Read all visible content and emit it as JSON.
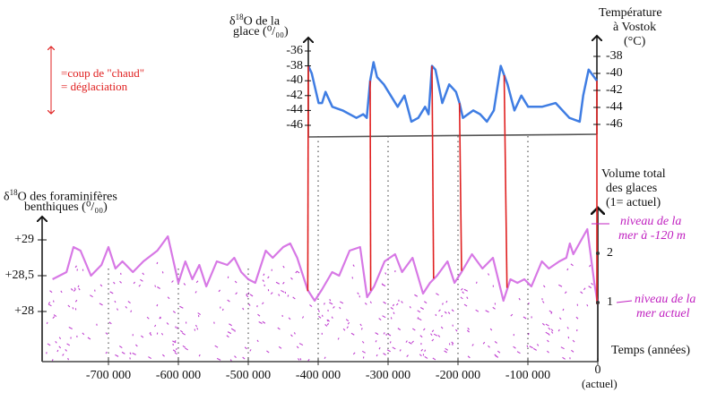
{
  "legend": {
    "line1": "=coup de \"chaud\"",
    "line2": "= déglaciation",
    "color": "#e02020"
  },
  "top_left_axis": {
    "line1_prefix": "δ",
    "line1_sup": "18",
    "line1_rest": "O de la",
    "line2": "glace (⁰/₀₀)",
    "ticks": [
      "-36",
      "-38",
      "-40",
      "-42",
      "-44",
      "-46"
    ]
  },
  "top_right_axis": {
    "line1": "Température",
    "line2": "à Vostok",
    "line3": "(°C)",
    "ticks": [
      "-38",
      "-40",
      "-42",
      "-44",
      "-46"
    ]
  },
  "bottom_left_axis": {
    "line1_prefix": "δ",
    "line1_sup": "18",
    "line1_rest": "O des foraminifères",
    "line2": "benthiques (⁰/₀₀)",
    "ticks": [
      "+29",
      "+28,5",
      "+28"
    ]
  },
  "bottom_right_axis": {
    "line1": "Volume total",
    "line2": "des glaces",
    "line3": "(1= actuel)",
    "ticks": [
      "2",
      "1"
    ]
  },
  "annotations": {
    "high_1": "niveau de la",
    "high_2": "mer à -120 m",
    "low_1": "niveau de la",
    "low_2": "mer actuel"
  },
  "x_axis": {
    "title": "Temps (années)",
    "ticks": [
      "-700 000",
      "-600 000",
      "-500 000",
      "-400 000",
      "-300 000",
      "-200 000",
      "-100 000",
      "0"
    ],
    "zero_note": "(actuel)"
  },
  "chart_data": {
    "type": "line",
    "series": [
      {
        "name": "δ18O glace (Vostok)",
        "color": "#2a6fe0",
        "x": [
          -420,
          -415,
          -405,
          -400,
          -395,
          -385,
          -370,
          -350,
          -340,
          -335,
          -330,
          -325,
          -320,
          -310,
          -300,
          -290,
          -280,
          -270,
          -260,
          -250,
          -245,
          -240,
          -235,
          -225,
          -215,
          -205,
          -200,
          -195,
          -180,
          -170,
          -160,
          -150,
          -140,
          -130,
          -120,
          -110,
          -100,
          -80,
          -60,
          -40,
          -25,
          -20,
          -12,
          0
        ],
        "y": [
          -38,
          -39,
          -43,
          -43,
          -41.5,
          -43.5,
          -44,
          -45,
          -44.5,
          -45,
          -40,
          -37.5,
          -39.5,
          -40.5,
          -42,
          -43.5,
          -42,
          -45.5,
          -45,
          -43.5,
          -44.5,
          -38,
          -38.5,
          -43,
          -40.5,
          -41.5,
          -43,
          -45,
          -44,
          -44.5,
          -45.5,
          -44,
          -38,
          -40.5,
          -44,
          -42,
          -43.5,
          -43.5,
          -43,
          -45,
          -45.5,
          -42,
          -38.5,
          -40
        ]
      },
      {
        "name": "δ18O foraminifères benthiques",
        "color": "#d060e0",
        "x": [
          -780,
          -770,
          -760,
          -750,
          -740,
          -725,
          -710,
          -700,
          -690,
          -680,
          -665,
          -650,
          -630,
          -615,
          -600,
          -590,
          -580,
          -570,
          -560,
          -545,
          -530,
          -520,
          -510,
          -500,
          -490,
          -475,
          -465,
          -450,
          -440,
          -430,
          -415,
          -405,
          -395,
          -380,
          -370,
          -355,
          -340,
          -330,
          -320,
          -305,
          -290,
          -280,
          -265,
          -250,
          -240,
          -230,
          -215,
          -205,
          -195,
          -180,
          -165,
          -150,
          -135,
          -125,
          -115,
          -105,
          -95,
          -80,
          -70,
          -55,
          -45,
          -40,
          -35,
          -15,
          -5,
          0
        ],
        "y": [
          28.45,
          28.5,
          28.55,
          28.9,
          28.85,
          28.5,
          28.65,
          28.9,
          28.6,
          28.7,
          28.55,
          28.7,
          28.85,
          29.05,
          28.4,
          28.7,
          28.45,
          28.65,
          28.35,
          28.7,
          28.65,
          28.75,
          28.55,
          28.45,
          28.4,
          28.85,
          28.75,
          28.9,
          28.95,
          28.75,
          28.3,
          28.15,
          28.3,
          28.55,
          28.5,
          28.85,
          28.9,
          28.2,
          28.35,
          28.7,
          28.8,
          28.55,
          28.75,
          28.25,
          28.4,
          28.5,
          28.7,
          28.4,
          28.55,
          28.8,
          28.6,
          28.75,
          28.15,
          28.45,
          28.4,
          28.45,
          28.35,
          28.7,
          28.6,
          28.7,
          28.75,
          28.95,
          28.8,
          29.15,
          28.4,
          28.1
        ]
      }
    ],
    "deglaciations_ka": [
      -420,
      -330,
      -240,
      -200,
      -135,
      0
    ],
    "xlabel": "Temps (années)",
    "top_ylim": [
      -46,
      -36
    ],
    "bottom_ylim": [
      28,
      29
    ]
  }
}
